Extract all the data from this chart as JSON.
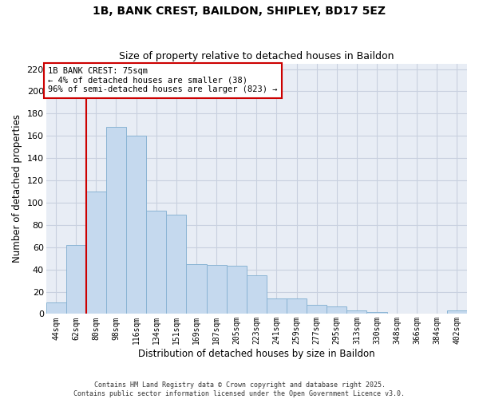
{
  "title": "1B, BANK CREST, BAILDON, SHIPLEY, BD17 5EZ",
  "subtitle": "Size of property relative to detached houses in Baildon",
  "xlabel": "Distribution of detached houses by size in Baildon",
  "ylabel": "Number of detached properties",
  "bar_labels": [
    "44sqm",
    "62sqm",
    "80sqm",
    "98sqm",
    "116sqm",
    "134sqm",
    "151sqm",
    "169sqm",
    "187sqm",
    "205sqm",
    "223sqm",
    "241sqm",
    "259sqm",
    "277sqm",
    "295sqm",
    "313sqm",
    "330sqm",
    "348sqm",
    "366sqm",
    "384sqm",
    "402sqm"
  ],
  "bar_values": [
    10,
    62,
    110,
    168,
    160,
    93,
    89,
    45,
    44,
    43,
    35,
    14,
    14,
    8,
    7,
    3,
    2,
    0,
    0,
    0,
    3
  ],
  "bar_color": "#c5d9ee",
  "bar_edge_color": "#8ab4d4",
  "vline_color": "#cc0000",
  "annotation_title": "1B BANK CREST: 75sqm",
  "annotation_line1": "← 4% of detached houses are smaller (38)",
  "annotation_line2": "96% of semi-detached houses are larger (823) →",
  "annotation_box_color": "#ffffff",
  "annotation_box_edge": "#cc0000",
  "ylim": [
    0,
    225
  ],
  "yticks": [
    0,
    20,
    40,
    60,
    80,
    100,
    120,
    140,
    160,
    180,
    200,
    220
  ],
  "bg_color": "#e8edf5",
  "grid_color": "#c8d0df",
  "footer1": "Contains HM Land Registry data © Crown copyright and database right 2025.",
  "footer2": "Contains public sector information licensed under the Open Government Licence v3.0."
}
